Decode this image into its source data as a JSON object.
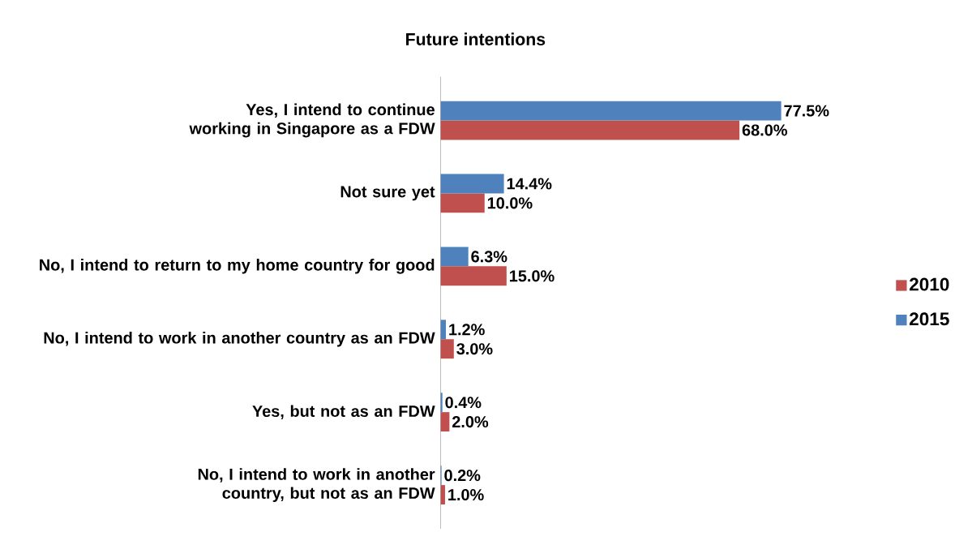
{
  "chart_data": {
    "type": "bar",
    "orientation": "horizontal",
    "title": "Future intentions",
    "categories": [
      "Yes, I intend to continue working in Singapore as a FDW",
      "Not sure yet",
      "No, I intend to return to my home country for good",
      "No, I intend to work in another country as an FDW",
      "Yes, but not as an FDW",
      "No, I intend to work in another country, but not as an FDW"
    ],
    "series": [
      {
        "name": "2010",
        "color": "#c0504d",
        "values": [
          68.0,
          10.0,
          15.0,
          3.0,
          2.0,
          1.0
        ],
        "value_labels": [
          "68.0%",
          "10.0%",
          "15.0%",
          "3.0%",
          "2.0%",
          "1.0%"
        ]
      },
      {
        "name": "2015",
        "color": "#4f81bd",
        "values": [
          77.5,
          14.4,
          6.3,
          1.2,
          0.4,
          0.2
        ],
        "value_labels": [
          "77.5%",
          "14.4%",
          "6.3%",
          "1.2%",
          "0.4%",
          "0.2%"
        ]
      }
    ],
    "legend": "right"
  }
}
